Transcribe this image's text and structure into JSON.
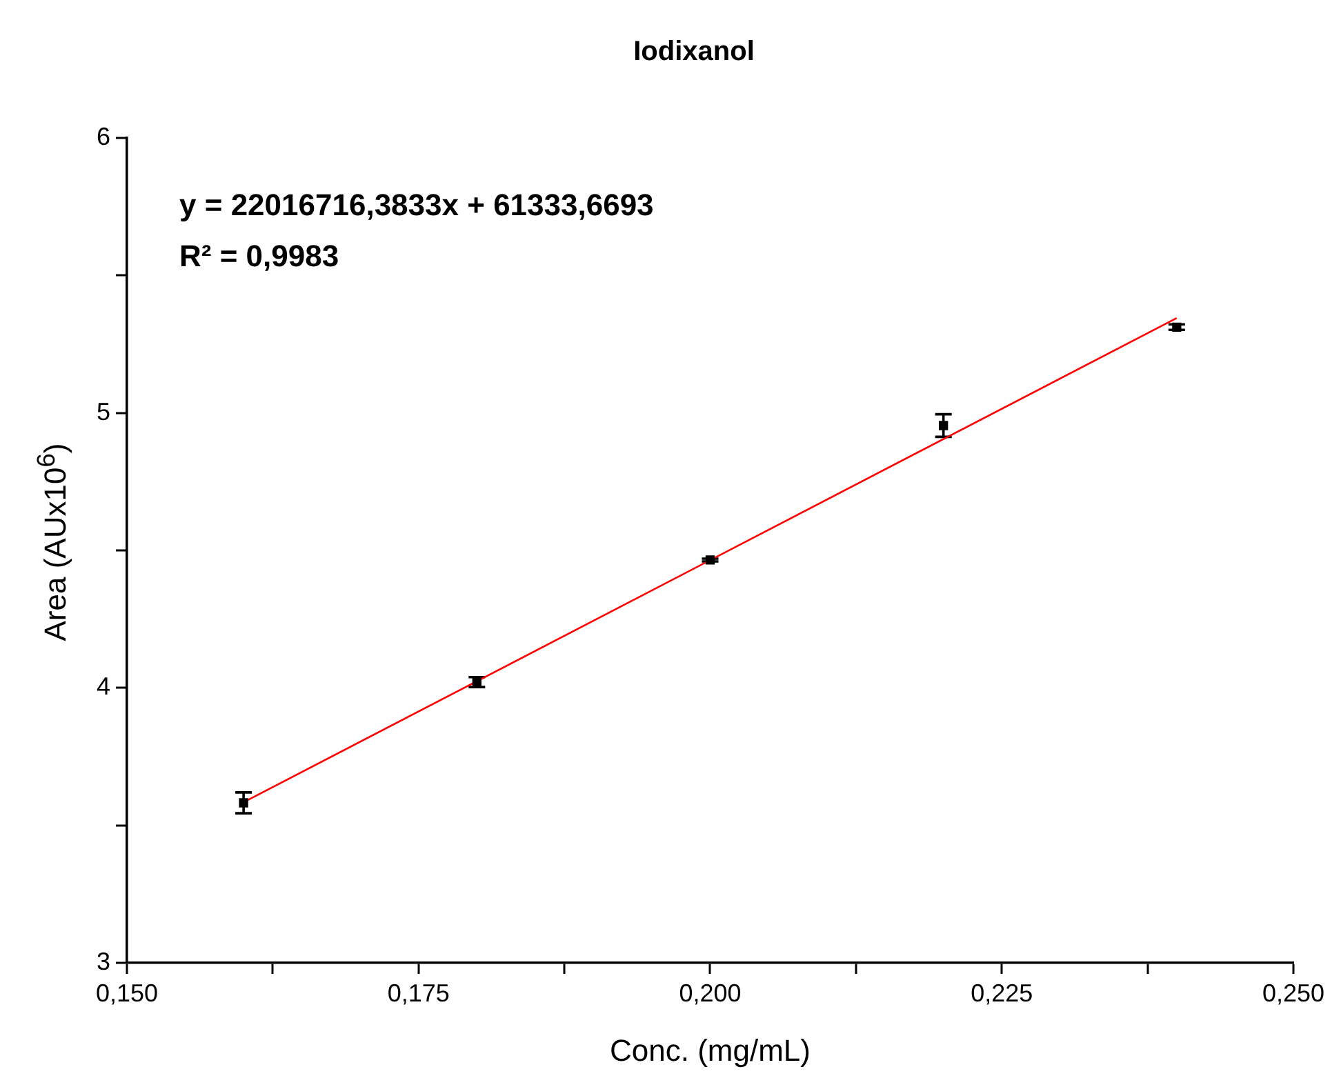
{
  "chart_data": {
    "type": "scatter",
    "title": "Iodixanol",
    "xlabel": "Conc. (mg/mL)",
    "ylabel": "Area (AUx10$^{6}$)",
    "annotations": [
      "y = 22016716,3833x + 61333,6693",
      "R² = 0,9983"
    ],
    "x": [
      0.16,
      0.18,
      0.2,
      0.22,
      0.24
    ],
    "xlim": [
      0.15,
      0.25
    ],
    "xticks": [
      {
        "value": 0.15,
        "label": "0,150"
      },
      {
        "value": 0.1625,
        "label": null
      },
      {
        "value": 0.175,
        "label": "0,175"
      },
      {
        "value": 0.1875,
        "label": null
      },
      {
        "value": 0.2,
        "label": "0,200"
      },
      {
        "value": 0.2125,
        "label": null
      },
      {
        "value": 0.225,
        "label": "0,225"
      },
      {
        "value": 0.2375,
        "label": null
      },
      {
        "value": 0.25,
        "label": "0,250"
      }
    ],
    "ylim": [
      3,
      6
    ],
    "yticks": [
      3,
      {
        "value": 3.5,
        "label": null
      },
      4,
      {
        "value": 4.5,
        "label": null
      },
      5,
      {
        "value": 5.5,
        "label": null
      },
      6
    ],
    "series": [
      {
        "color": "#000000",
        "marker": "square",
        "values": [
          3.582,
          4.021,
          4.465,
          4.954,
          5.312
        ],
        "errors": [
          0.038,
          0.018,
          0.005,
          0.041,
          0.01
        ]
      },
      {
        "type": "line",
        "color": "#ff0000",
        "x": [
          0.16,
          0.24
        ],
        "values": [
          3.584,
          5.345
        ]
      }
    ]
  }
}
